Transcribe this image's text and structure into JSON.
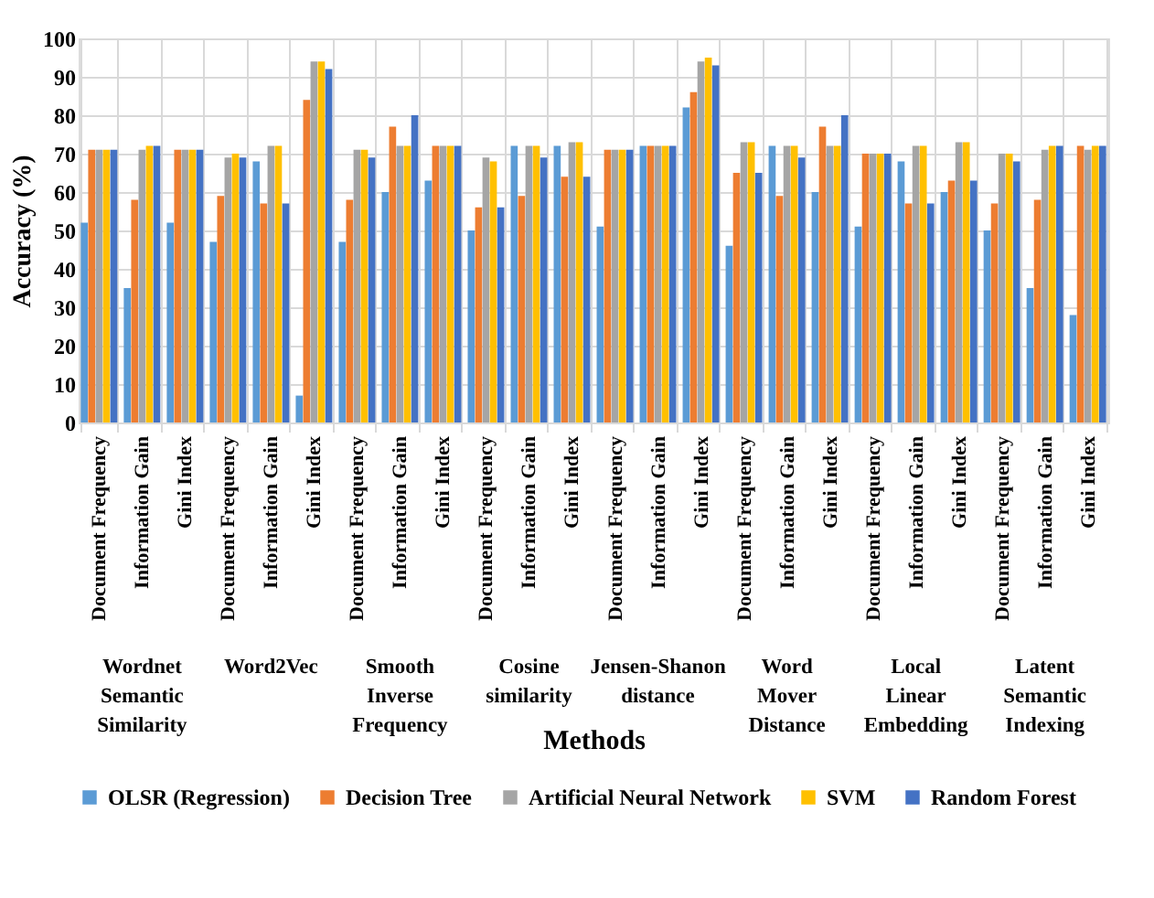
{
  "chart_data": {
    "type": "bar",
    "xlabel": "Methods",
    "ylabel": "Accuracy (%)",
    "categories": [
      "Document Frequency",
      "Information Gain",
      "Gini Index",
      "Document Frequency",
      "Information Gain",
      "Gini Index",
      "Document Frequency",
      "Information Gain",
      "Gini Index",
      "Document Frequency",
      "Information Gain",
      "Gini Index",
      "Document Frequency",
      "Information Gain",
      "Gini Index",
      "Document Frequency",
      "Information Gain",
      "Gini Index",
      "Document Frequency",
      "Information Gain",
      "Gini Index",
      "Document Frequency",
      "Information Gain",
      "Gini Index"
    ],
    "series": [
      {
        "name": "OLSR (Regression)",
        "color": "#5b9bd5",
        "values": [
          52,
          35,
          52,
          47,
          68,
          7,
          47,
          60,
          63,
          50,
          72,
          72,
          51,
          72,
          82,
          46,
          72,
          60,
          51,
          68,
          60,
          50,
          35,
          28
        ]
      },
      {
        "name": "Decision Tree",
        "color": "#ed7d31",
        "values": [
          71,
          58,
          71,
          59,
          57,
          84,
          58,
          77,
          72,
          56,
          59,
          64,
          71,
          72,
          86,
          65,
          59,
          77,
          70,
          57,
          63,
          57,
          58,
          72
        ]
      },
      {
        "name": "Artificial Neural Network",
        "color": "#a5a5a5",
        "values": [
          71,
          71,
          71,
          69,
          72,
          94,
          71,
          72,
          72,
          69,
          72,
          73,
          71,
          72,
          94,
          73,
          72,
          72,
          70,
          72,
          73,
          70,
          71,
          71
        ]
      },
      {
        "name": "SVM",
        "color": "#ffc000",
        "values": [
          71,
          72,
          71,
          70,
          72,
          94,
          71,
          72,
          72,
          68,
          72,
          73,
          71,
          72,
          95,
          73,
          72,
          72,
          70,
          72,
          73,
          70,
          72,
          72
        ]
      },
      {
        "name": "Random Forest",
        "color": "#4472c4",
        "values": [
          71,
          72,
          71,
          69,
          57,
          92,
          69,
          80,
          72,
          56,
          69,
          64,
          71,
          72,
          93,
          65,
          69,
          80,
          70,
          57,
          63,
          68,
          72,
          72
        ]
      }
    ],
    "annotations": [
      "Wordnet Semantic Similarity",
      "Word2Vec",
      "Smooth Inverse Frequency",
      "Cosine similarity",
      "Jensen-Shanon distance",
      "Word Mover Distance",
      "Local Linear Embedding",
      "Latent Semantic Indexing"
    ],
    "ylim": [
      0,
      100
    ],
    "yticks": [
      0,
      10,
      20,
      30,
      40,
      50,
      60,
      70,
      80,
      90,
      100
    ],
    "grid": true,
    "legend": "bottom"
  }
}
